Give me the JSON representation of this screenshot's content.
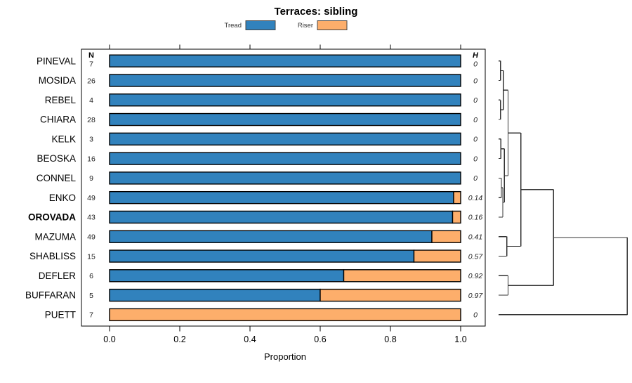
{
  "title": "Terraces: sibling",
  "legend": {
    "items": [
      {
        "label": "Tread",
        "color": "#3182bd"
      },
      {
        "label": "Riser",
        "color": "#fdae6b"
      }
    ]
  },
  "columns": {
    "n_header": "N",
    "h_header": "H"
  },
  "axis": {
    "label": "Proportion",
    "ticks": [
      "0.0",
      "0.2",
      "0.4",
      "0.6",
      "0.8",
      "1.0"
    ],
    "xlim": [
      0,
      1
    ]
  },
  "chart_data": {
    "type": "bar",
    "orientation": "horizontal",
    "stacked": true,
    "title": "Terraces: sibling",
    "xlabel": "Proportion",
    "xlim": [
      0,
      1
    ],
    "series_labels": [
      "Tread",
      "Riser"
    ],
    "rows": [
      {
        "label": "PINEVAL",
        "n": 7,
        "tread": 1.0,
        "riser": 0.0,
        "h_label": "0",
        "bold": false
      },
      {
        "label": "MOSIDA",
        "n": 26,
        "tread": 1.0,
        "riser": 0.0,
        "h_label": "0",
        "bold": false
      },
      {
        "label": "REBEL",
        "n": 4,
        "tread": 1.0,
        "riser": 0.0,
        "h_label": "0",
        "bold": false
      },
      {
        "label": "CHIARA",
        "n": 28,
        "tread": 1.0,
        "riser": 0.0,
        "h_label": "0",
        "bold": false
      },
      {
        "label": "KELK",
        "n": 3,
        "tread": 1.0,
        "riser": 0.0,
        "h_label": "0",
        "bold": false
      },
      {
        "label": "BEOSKA",
        "n": 16,
        "tread": 1.0,
        "riser": 0.0,
        "h_label": "0",
        "bold": false
      },
      {
        "label": "CONNEL",
        "n": 9,
        "tread": 1.0,
        "riser": 0.0,
        "h_label": "0",
        "bold": false
      },
      {
        "label": "ENKO",
        "n": 49,
        "tread": 0.98,
        "riser": 0.02,
        "h_label": "0.14",
        "bold": false
      },
      {
        "label": "OROVADA",
        "n": 43,
        "tread": 0.977,
        "riser": 0.023,
        "h_label": "0.16",
        "bold": true
      },
      {
        "label": "MAZUMA",
        "n": 49,
        "tread": 0.918,
        "riser": 0.082,
        "h_label": "0.41",
        "bold": false
      },
      {
        "label": "SHABLISS",
        "n": 15,
        "tread": 0.867,
        "riser": 0.133,
        "h_label": "0.57",
        "bold": false
      },
      {
        "label": "DEFLER",
        "n": 6,
        "tread": 0.667,
        "riser": 0.333,
        "h_label": "0.92",
        "bold": false
      },
      {
        "label": "BUFFARAN",
        "n": 5,
        "tread": 0.6,
        "riser": 0.4,
        "h_label": "0.97",
        "bold": false
      },
      {
        "label": "PUETT",
        "n": 7,
        "tread": 0.0,
        "riser": 1.0,
        "h_label": "0",
        "bold": false
      }
    ],
    "dendrogram": {
      "merges": [
        {
          "id": "m1",
          "a": "PINEVAL",
          "b": "MOSIDA",
          "h": 0.015
        },
        {
          "id": "m2",
          "a": "REBEL",
          "b": "CHIARA",
          "h": 0.015
        },
        {
          "id": "m3",
          "a": "m1",
          "b": "m2",
          "h": 0.037
        },
        {
          "id": "m4",
          "a": "KELK",
          "b": "BEOSKA",
          "h": 0.018
        },
        {
          "id": "m5",
          "a": "CONNEL",
          "b": "ENKO",
          "h": 0.022
        },
        {
          "id": "m6",
          "a": "m5",
          "b": "OROVADA",
          "h": 0.033
        },
        {
          "id": "m7",
          "a": "m4",
          "b": "m6",
          "h": 0.045
        },
        {
          "id": "m8",
          "a": "m3",
          "b": "m7",
          "h": 0.073
        },
        {
          "id": "m9",
          "a": "MAZUMA",
          "b": "SHABLISS",
          "h": 0.064
        },
        {
          "id": "m10",
          "a": "m8",
          "b": "m9",
          "h": 0.173
        },
        {
          "id": "m11",
          "a": "DEFLER",
          "b": "BUFFARAN",
          "h": 0.073
        },
        {
          "id": "m12",
          "a": "m10",
          "b": "m11",
          "h": 0.427
        },
        {
          "id": "m13",
          "a": "m12",
          "b": "PUETT",
          "h": 1.0
        }
      ]
    }
  }
}
